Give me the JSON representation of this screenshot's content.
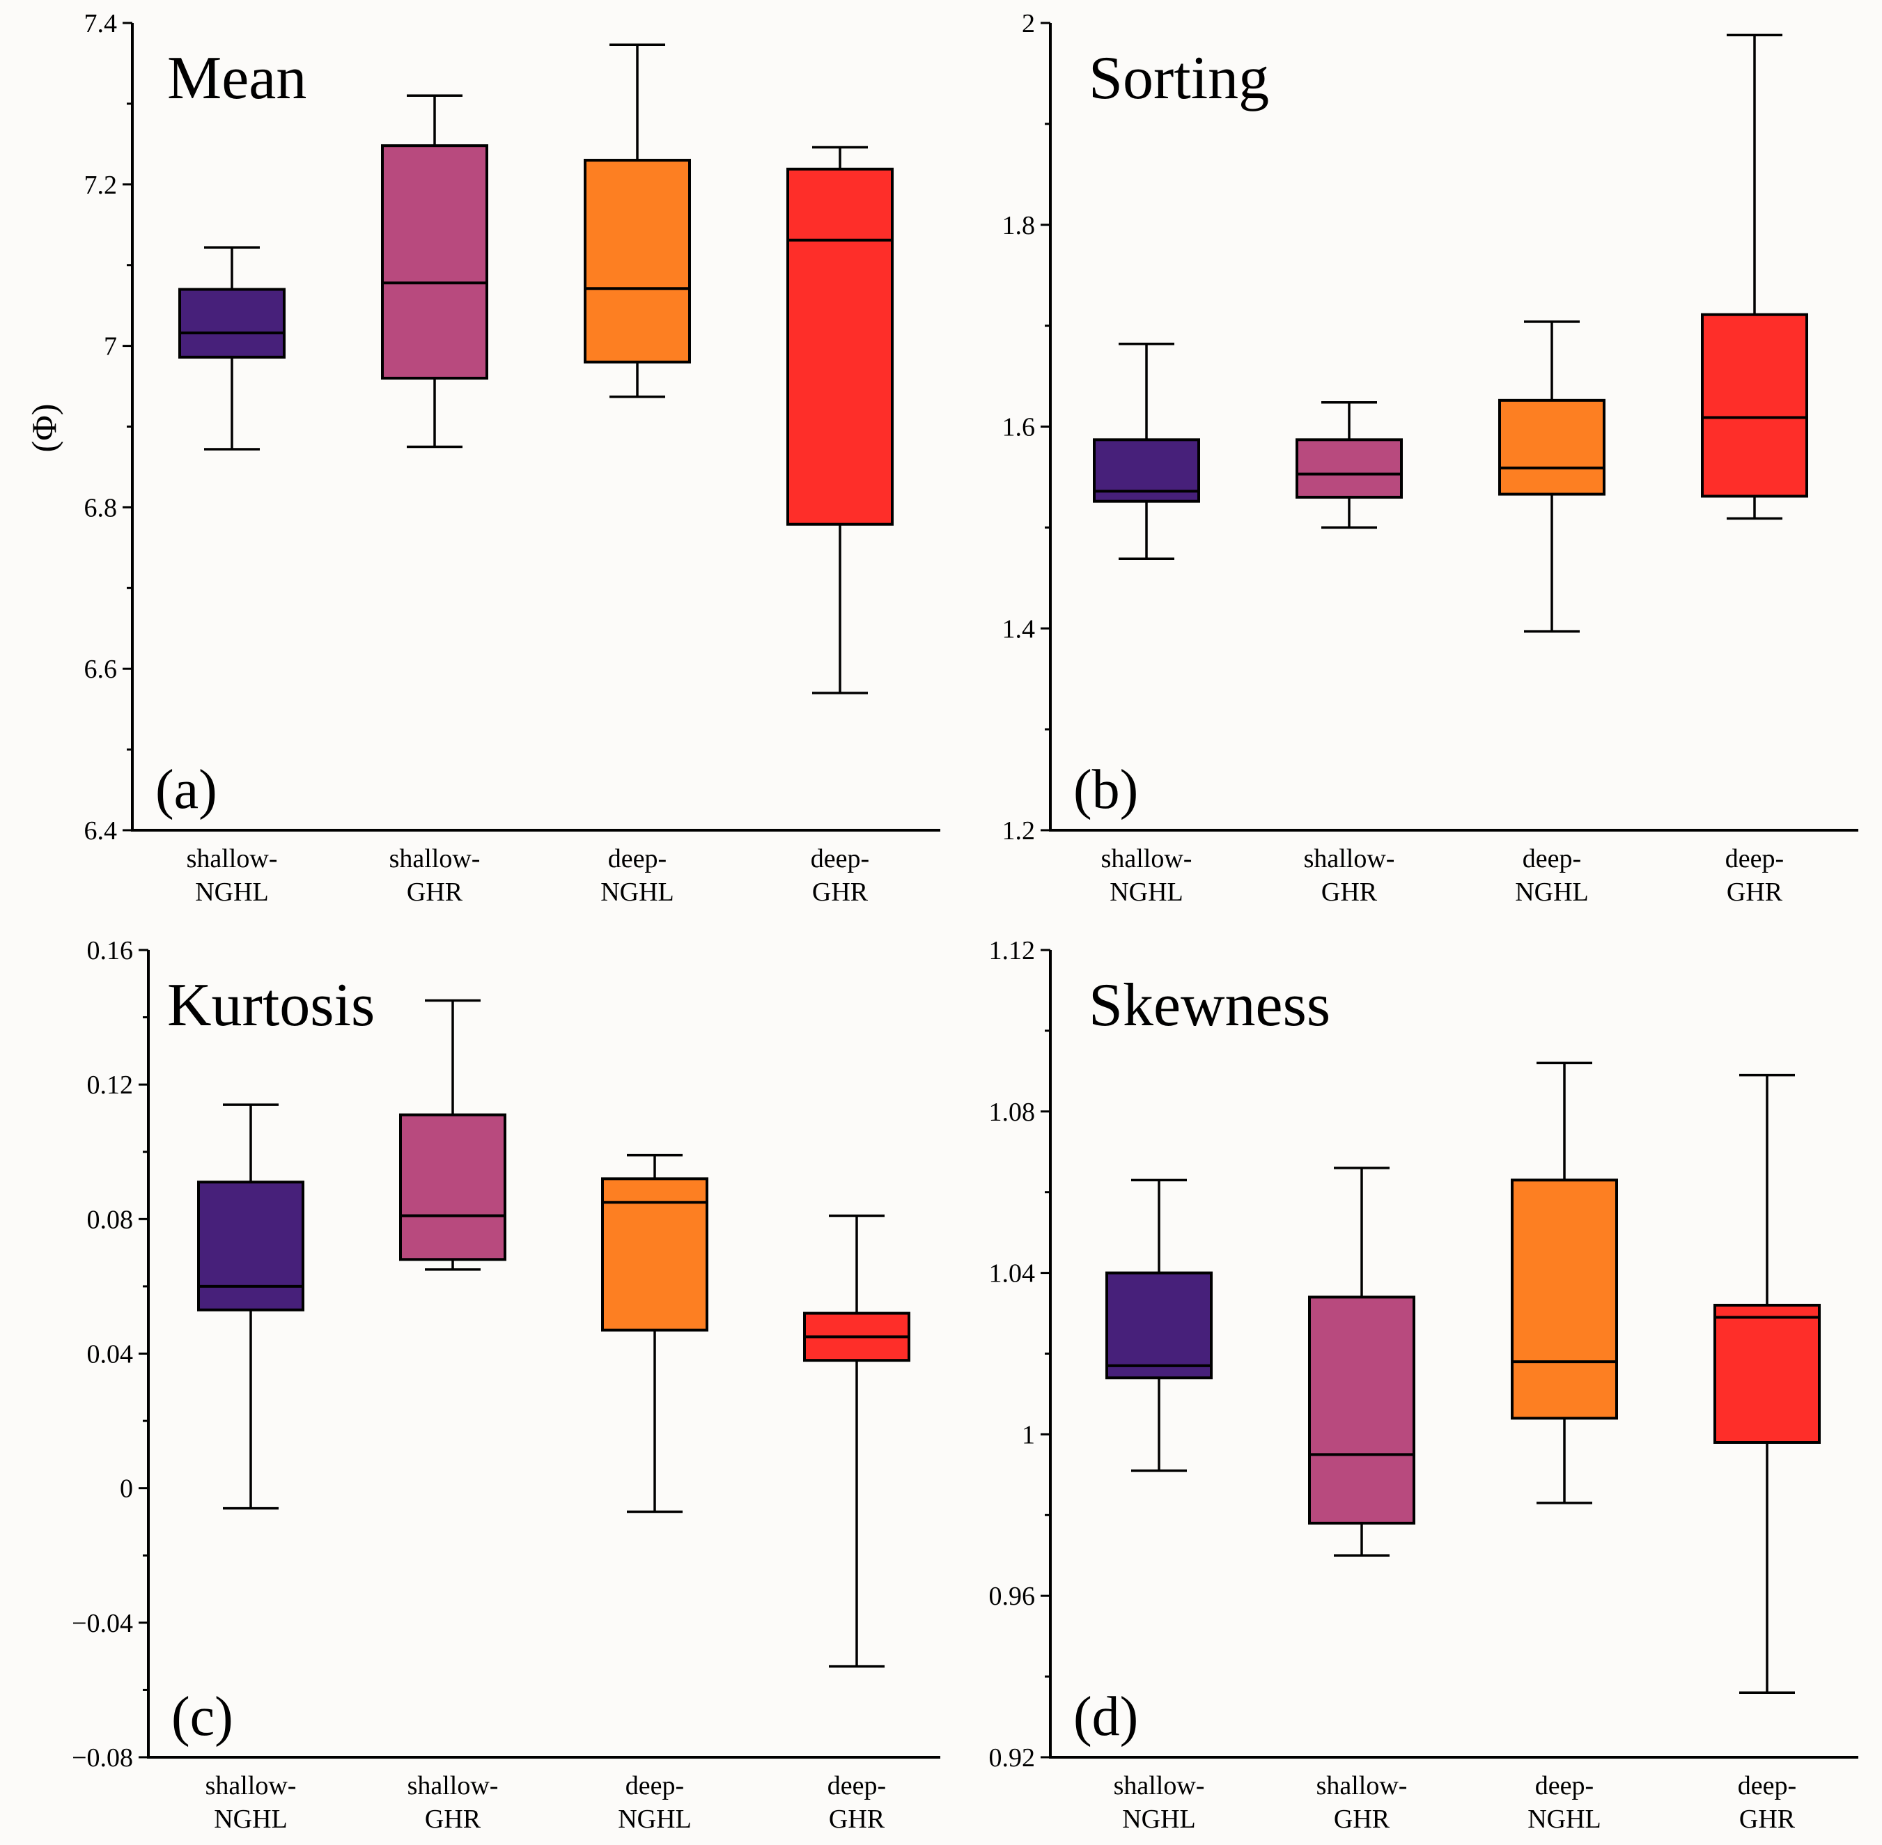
{
  "colors": {
    "shallow-NGHL": "#47207a",
    "shallow-GHR": "#b84a7e",
    "deep-NGHL": "#fd7f22",
    "deep-GHR": "#fe2e29"
  },
  "categories": [
    [
      "shallow-",
      "NGHL"
    ],
    [
      "shallow-",
      "GHR"
    ],
    [
      "deep-",
      "NGHL"
    ],
    [
      "deep-",
      "GHR"
    ]
  ],
  "chart_data": [
    {
      "type": "box",
      "title": "Mean",
      "panel_label": "(a)",
      "ylabel": "(Φ)",
      "ylim": [
        6.4,
        7.4
      ],
      "yticks": [
        "6.4",
        "6.6",
        "6.8",
        "7",
        "7.2",
        "7.4"
      ],
      "boxes": [
        {
          "min": 6.872,
          "q1": 6.986,
          "median": 7.016,
          "q3": 7.07,
          "max": 7.122
        },
        {
          "min": 6.875,
          "q1": 6.96,
          "median": 7.078,
          "q3": 7.248,
          "max": 7.31
        },
        {
          "min": 6.937,
          "q1": 6.98,
          "median": 7.071,
          "q3": 7.23,
          "max": 7.373
        },
        {
          "min": 6.57,
          "q1": 6.779,
          "median": 7.131,
          "q3": 7.219,
          "max": 7.246
        }
      ]
    },
    {
      "type": "box",
      "title": "Sorting",
      "panel_label": "(b)",
      "ylabel": "",
      "ylim": [
        1.2,
        2.0
      ],
      "yticks": [
        "1.2",
        "1.4",
        "1.6",
        "1.8",
        "2"
      ],
      "boxes": [
        {
          "min": 1.469,
          "q1": 1.526,
          "median": 1.536,
          "q3": 1.587,
          "max": 1.682
        },
        {
          "min": 1.5,
          "q1": 1.53,
          "median": 1.553,
          "q3": 1.587,
          "max": 1.624
        },
        {
          "min": 1.397,
          "q1": 1.533,
          "median": 1.559,
          "q3": 1.626,
          "max": 1.704
        },
        {
          "min": 1.509,
          "q1": 1.531,
          "median": 1.609,
          "q3": 1.711,
          "max": 1.988
        }
      ]
    },
    {
      "type": "box",
      "title": "Kurtosis",
      "panel_label": "(c)",
      "ylabel": "",
      "ylim": [
        -0.08,
        0.16
      ],
      "yticks": [
        "−0.08",
        "−0.04",
        "0",
        "0.04",
        "0.08",
        "0.12",
        "0.16"
      ],
      "boxes": [
        {
          "min": -0.006,
          "q1": 0.053,
          "median": 0.06,
          "q3": 0.091,
          "max": 0.114
        },
        {
          "min": 0.065,
          "q1": 0.068,
          "median": 0.081,
          "q3": 0.111,
          "max": 0.145
        },
        {
          "min": -0.007,
          "q1": 0.047,
          "median": 0.085,
          "q3": 0.092,
          "max": 0.099
        },
        {
          "min": -0.053,
          "q1": 0.038,
          "median": 0.045,
          "q3": 0.052,
          "max": 0.081
        }
      ]
    },
    {
      "type": "box",
      "title": "Skewness",
      "panel_label": "(d)",
      "ylabel": "",
      "ylim": [
        0.92,
        1.12
      ],
      "yticks": [
        "0.92",
        "0.96",
        "1",
        "1.04",
        "1.08",
        "1.12"
      ],
      "boxes": [
        {
          "min": 0.991,
          "q1": 1.014,
          "median": 1.017,
          "q3": 1.04,
          "max": 1.063
        },
        {
          "min": 0.97,
          "q1": 0.978,
          "median": 0.995,
          "q3": 1.034,
          "max": 1.066
        },
        {
          "min": 0.983,
          "q1": 1.004,
          "median": 1.018,
          "q3": 1.063,
          "max": 1.092
        },
        {
          "min": 0.936,
          "q1": 0.998,
          "median": 1.029,
          "q3": 1.032,
          "max": 1.089
        }
      ]
    }
  ]
}
